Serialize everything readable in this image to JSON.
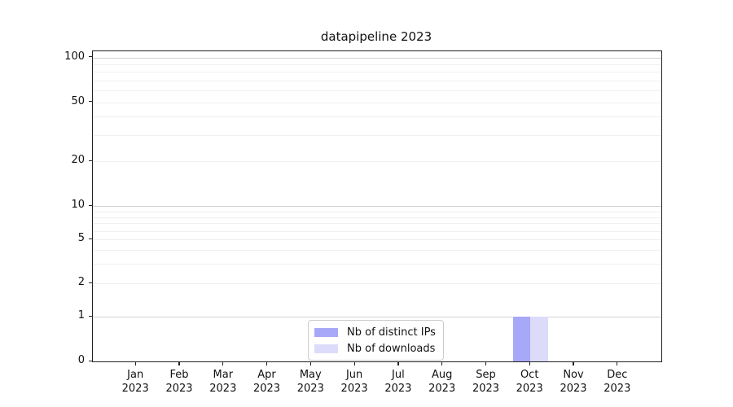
{
  "chart_data": {
    "type": "bar",
    "title": "datapipeline 2023",
    "yscale": "symlog",
    "ylim": [
      0,
      100
    ],
    "y_ticks": [
      0,
      1,
      2,
      5,
      10,
      20,
      50,
      100
    ],
    "y_minor_gridlines": [
      2,
      3,
      4,
      5,
      6,
      7,
      8,
      9,
      20,
      30,
      40,
      50,
      60,
      70,
      80,
      90
    ],
    "y_major_gridlines": [
      1,
      10,
      100
    ],
    "grid": "horizontal",
    "legend_position": "lower center",
    "categories": [
      {
        "month": "Jan",
        "year": "2023"
      },
      {
        "month": "Feb",
        "year": "2023"
      },
      {
        "month": "Mar",
        "year": "2023"
      },
      {
        "month": "Apr",
        "year": "2023"
      },
      {
        "month": "May",
        "year": "2023"
      },
      {
        "month": "Jun",
        "year": "2023"
      },
      {
        "month": "Jul",
        "year": "2023"
      },
      {
        "month": "Aug",
        "year": "2023"
      },
      {
        "month": "Sep",
        "year": "2023"
      },
      {
        "month": "Oct",
        "year": "2023"
      },
      {
        "month": "Nov",
        "year": "2023"
      },
      {
        "month": "Dec",
        "year": "2023"
      }
    ],
    "series": [
      {
        "name": "Nb of distinct IPs",
        "color": "#a8a8f8",
        "values": [
          0,
          0,
          0,
          0,
          0,
          0,
          0,
          0,
          0,
          1,
          0,
          0
        ]
      },
      {
        "name": "Nb of downloads",
        "color": "#dcdcfa",
        "values": [
          0,
          0,
          0,
          0,
          0,
          0,
          0,
          0,
          0,
          1,
          0,
          0
        ]
      }
    ]
  }
}
